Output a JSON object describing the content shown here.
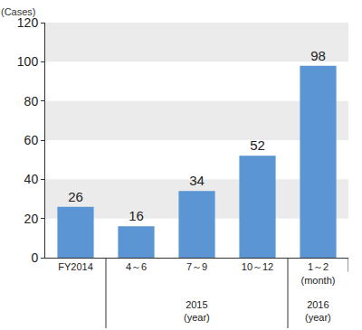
{
  "chart_data": {
    "type": "bar",
    "y_label": "(Cases)",
    "categories": [
      "FY2014",
      "4～6",
      "7～9",
      "10～12",
      "1～2 (month)"
    ],
    "values": [
      26,
      16,
      34,
      52,
      98
    ],
    "color": "#5b95d3",
    "groups": [
      {
        "label": "2015 (year)",
        "categories": [
          "4～6",
          "7～9",
          "10～12"
        ]
      },
      {
        "label": "2016 (year)",
        "categories": [
          "1～2 (month)"
        ]
      }
    ],
    "ylim": [
      0,
      120
    ],
    "yticks": [
      0,
      20,
      40,
      60,
      80,
      100,
      120
    ],
    "grid": true,
    "data_labels": true
  }
}
